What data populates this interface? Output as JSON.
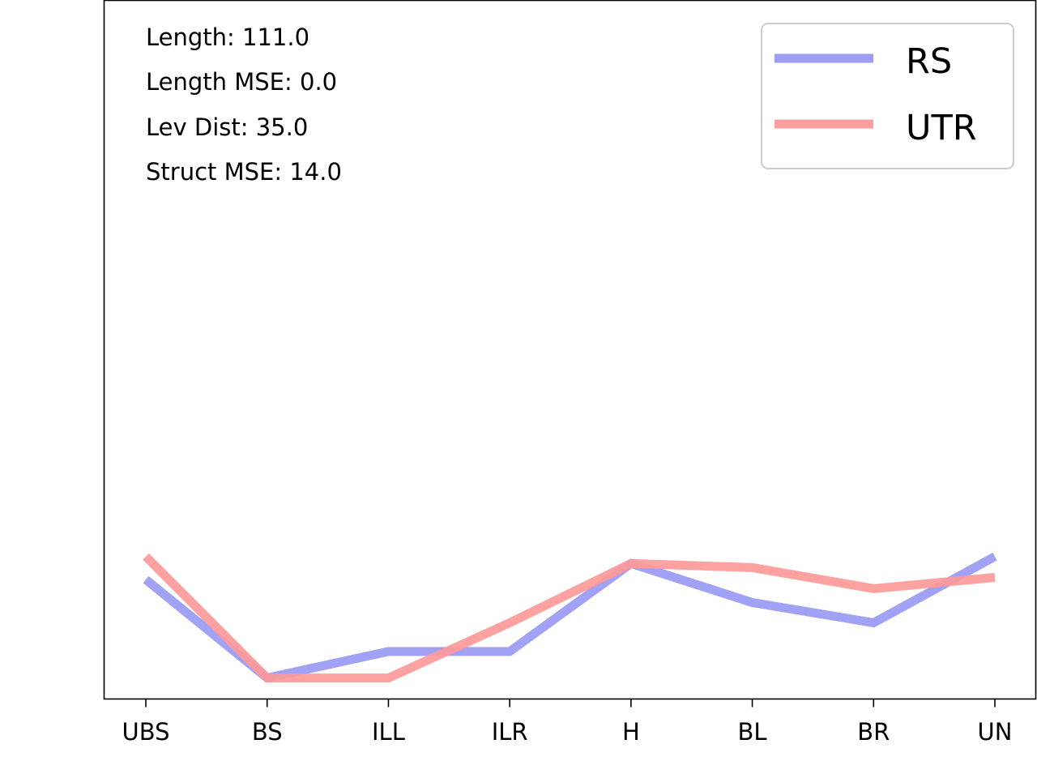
{
  "chart_data": {
    "type": "line",
    "title": "",
    "xlabel": "",
    "ylabel": "",
    "categories": [
      "UBS",
      "BS",
      "ILL",
      "ILR",
      "H",
      "BL",
      "BR",
      "UN"
    ],
    "ylim": [
      0,
      100
    ],
    "grid": false,
    "legend_position": "top-right",
    "series": [
      {
        "name": "RS",
        "color": "#9999f5",
        "values": [
          17.1,
          3.0,
          6.8,
          6.8,
          19.4,
          13.8,
          10.9,
          20.4
        ]
      },
      {
        "name": "UTR",
        "color": "#fd9999",
        "values": [
          20.4,
          3.0,
          3.0,
          10.9,
          19.4,
          18.8,
          15.8,
          17.4
        ]
      }
    ],
    "annotations": [
      "Length: 111.0",
      "Length MSE: 0.0",
      "Lev Dist: 35.0",
      "Struct MSE: 14.0"
    ]
  }
}
